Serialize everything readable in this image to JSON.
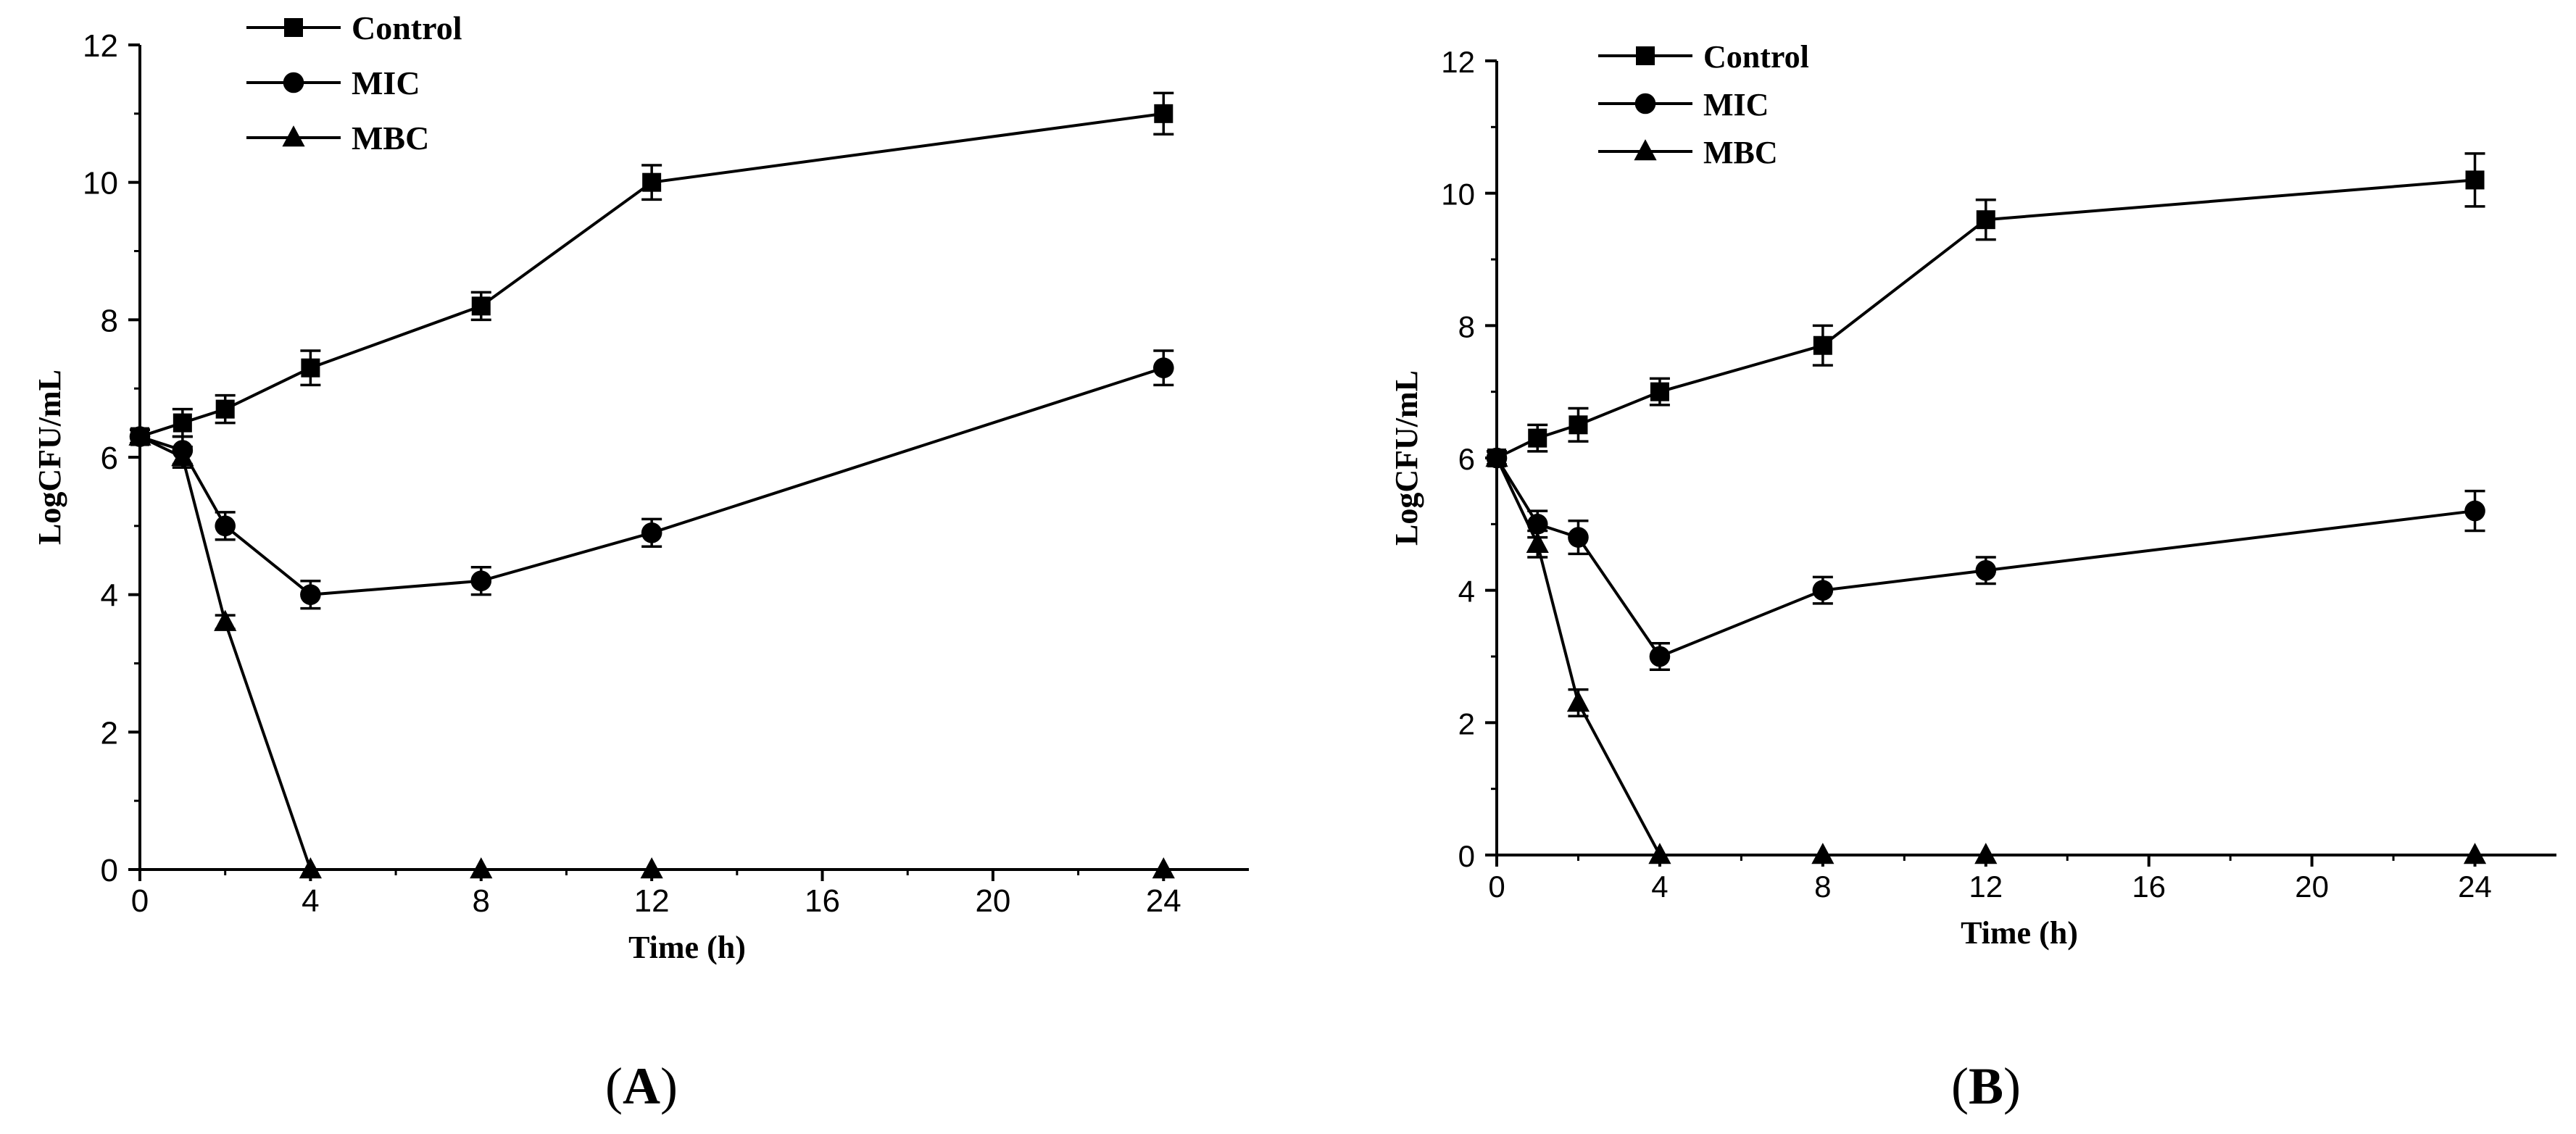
{
  "figure": {
    "panels": [
      "A",
      "B"
    ]
  },
  "colors": {
    "line": "#000000",
    "background": "#ffffff"
  },
  "chart_data": [
    {
      "type": "line",
      "panel_label": "A",
      "xlabel": "Time (h)",
      "ylabel": "LogCFU/mL",
      "xlim": [
        0,
        26
      ],
      "ylim": [
        0,
        12
      ],
      "xticks": [
        0,
        4,
        8,
        12,
        16,
        20,
        24
      ],
      "yticks": [
        0,
        2,
        4,
        6,
        8,
        10,
        12
      ],
      "legend_position": "top-left",
      "series": [
        {
          "name": "Control",
          "marker": "square",
          "x": [
            0,
            1,
            2,
            4,
            8,
            12,
            24
          ],
          "y": [
            6.3,
            6.5,
            6.7,
            7.3,
            8.2,
            10.0,
            11.0
          ],
          "err": [
            0.1,
            0.2,
            0.2,
            0.25,
            0.2,
            0.25,
            0.3
          ]
        },
        {
          "name": "MIC",
          "marker": "circle",
          "x": [
            0,
            1,
            2,
            4,
            8,
            12,
            24
          ],
          "y": [
            6.3,
            6.1,
            5.0,
            4.0,
            4.2,
            4.9,
            7.3
          ],
          "err": [
            0.1,
            0.2,
            0.2,
            0.2,
            0.2,
            0.2,
            0.25
          ]
        },
        {
          "name": "MBC",
          "marker": "triangle",
          "x": [
            0,
            1,
            2,
            4,
            8,
            12,
            24
          ],
          "y": [
            6.3,
            6.0,
            3.6,
            0,
            0,
            0,
            0
          ],
          "err": [
            0.1,
            0.15,
            0.1,
            0,
            0,
            0,
            0
          ]
        }
      ]
    },
    {
      "type": "line",
      "panel_label": "B",
      "xlabel": "Time (h)",
      "ylabel": "LogCFU/mL",
      "xlim": [
        0,
        26
      ],
      "ylim": [
        0,
        12
      ],
      "xticks": [
        0,
        4,
        8,
        12,
        16,
        20,
        24
      ],
      "yticks": [
        0,
        2,
        4,
        6,
        8,
        10,
        12
      ],
      "legend_position": "top-left",
      "series": [
        {
          "name": "Control",
          "marker": "square",
          "x": [
            0,
            1,
            2,
            4,
            8,
            12,
            24
          ],
          "y": [
            6.0,
            6.3,
            6.5,
            7.0,
            7.7,
            9.6,
            10.2
          ],
          "err": [
            0.1,
            0.2,
            0.25,
            0.2,
            0.3,
            0.3,
            0.4
          ]
        },
        {
          "name": "MIC",
          "marker": "circle",
          "x": [
            0,
            1,
            2,
            4,
            8,
            12,
            24
          ],
          "y": [
            6.0,
            5.0,
            4.8,
            3.0,
            4.0,
            4.3,
            5.2
          ],
          "err": [
            0.1,
            0.2,
            0.25,
            0.2,
            0.2,
            0.2,
            0.3
          ]
        },
        {
          "name": "MBC",
          "marker": "triangle",
          "x": [
            0,
            1,
            2,
            4,
            8,
            12,
            24
          ],
          "y": [
            6.0,
            4.7,
            2.3,
            0,
            0,
            0,
            0
          ],
          "err": [
            0.1,
            0.2,
            0.2,
            0,
            0,
            0,
            0
          ]
        }
      ]
    }
  ]
}
